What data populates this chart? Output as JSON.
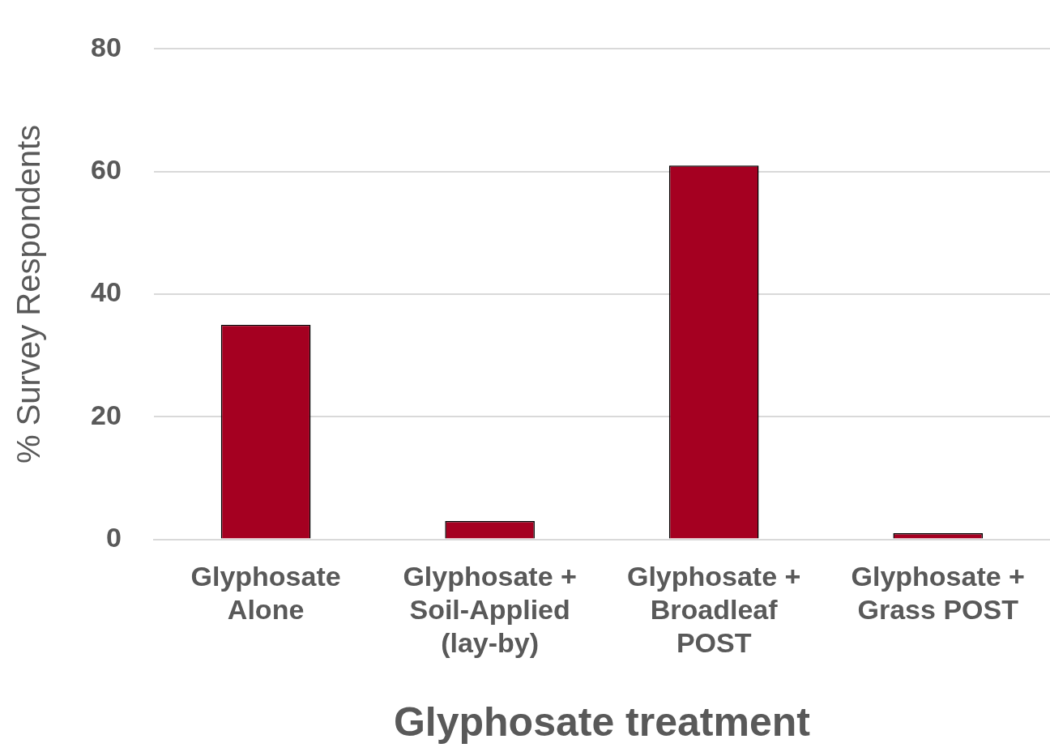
{
  "chart_data": {
    "type": "bar",
    "xlabel": "Glyphosate treatment",
    "ylabel": "% Survey Respondents",
    "categories": [
      "Glyphosate Alone",
      "Glyphosate + Soil-Applied (lay-by)",
      "Glyphosate + Broadleaf POST",
      "Glyphosate + Grass POST"
    ],
    "values": [
      35,
      3,
      61,
      1
    ],
    "color": "#a50021",
    "ylim": [
      0,
      80
    ],
    "yticks": [
      0,
      20,
      40,
      60,
      80
    ],
    "grid": "y",
    "legend": false
  }
}
